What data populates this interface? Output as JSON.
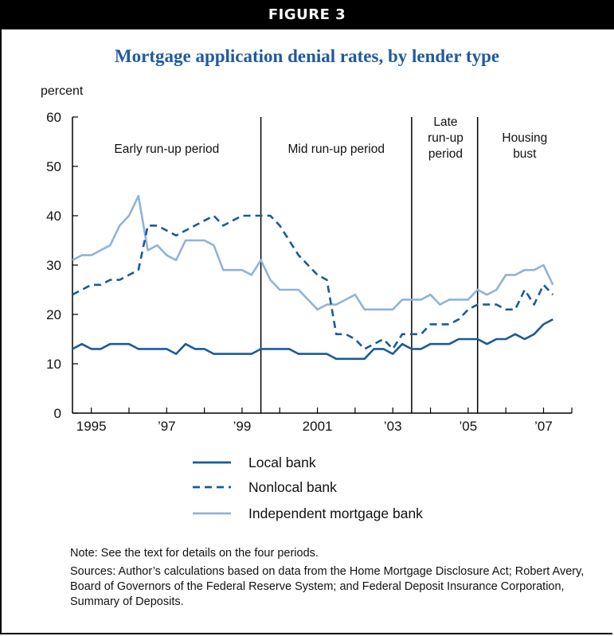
{
  "figure_label": "FIGURE 3",
  "chart_data": {
    "type": "line",
    "title": "Mortgage application denial rates, by lender type",
    "ylabel": "percent",
    "xlabel": "",
    "ylim": [
      0,
      60
    ],
    "xlim": [
      1994.5,
      2007.75
    ],
    "yticks": [
      0,
      10,
      20,
      30,
      40,
      50,
      60
    ],
    "xtick_labels": [
      {
        "x": 1995,
        "label": "1995"
      },
      {
        "x": 1997,
        "label": "’97"
      },
      {
        "x": 1999,
        "label": "’99"
      },
      {
        "x": 2001,
        "label": "2001"
      },
      {
        "x": 2003,
        "label": "’03"
      },
      {
        "x": 2005,
        "label": "’05"
      },
      {
        "x": 2007,
        "label": "’07"
      }
    ],
    "period_dividers": [
      1999.5,
      2003.5,
      2005.25
    ],
    "period_labels": [
      {
        "x": 1997.0,
        "lines": [
          "Early run-up period"
        ]
      },
      {
        "x": 2001.5,
        "lines": [
          "Mid run-up period"
        ]
      },
      {
        "x": 2004.4,
        "lines": [
          "Late",
          "run-up",
          "period"
        ]
      },
      {
        "x": 2006.5,
        "lines": [
          "Housing",
          "bust"
        ]
      }
    ],
    "x": [
      1994.5,
      1994.75,
      1995,
      1995.25,
      1995.5,
      1995.75,
      1996,
      1996.25,
      1996.5,
      1996.75,
      1997,
      1997.25,
      1997.5,
      1997.75,
      1998,
      1998.25,
      1998.5,
      1998.75,
      1999,
      1999.25,
      1999.5,
      1999.75,
      2000,
      2000.25,
      2000.5,
      2000.75,
      2001,
      2001.25,
      2001.5,
      2001.75,
      2002,
      2002.25,
      2002.5,
      2002.75,
      2003,
      2003.25,
      2003.5,
      2003.75,
      2004,
      2004.25,
      2004.5,
      2004.75,
      2005,
      2005.25,
      2005.5,
      2005.75,
      2006,
      2006.25,
      2006.5,
      2006.75,
      2007,
      2007.25,
      2007.5
    ],
    "series": [
      {
        "name": "Local bank",
        "style": "solid",
        "color": "#1a5a9a",
        "values": [
          13,
          14,
          13,
          13,
          14,
          14,
          14,
          13,
          13,
          13,
          13,
          12,
          14,
          13,
          13,
          12,
          12,
          12,
          12,
          12,
          13,
          13,
          13,
          13,
          12,
          12,
          12,
          12,
          11,
          11,
          11,
          11,
          13,
          13,
          12,
          14,
          13,
          13,
          14,
          14,
          14,
          15,
          15,
          15,
          14,
          15,
          15,
          16,
          15,
          16,
          18,
          19,
          null
        ]
      },
      {
        "name": "Nonlocal bank",
        "style": "dashed",
        "color": "#1a5a9a",
        "values": [
          24,
          25,
          26,
          26,
          27,
          27,
          28,
          29,
          38,
          38,
          37,
          36,
          37,
          38,
          39,
          40,
          38,
          39,
          40,
          40,
          40,
          40,
          38,
          35,
          32,
          30,
          28,
          27,
          16,
          16,
          15,
          13,
          14,
          15,
          13,
          16,
          16,
          16,
          18,
          18,
          18,
          19,
          21,
          22,
          22,
          22,
          21,
          21,
          25,
          22,
          26,
          24,
          null
        ]
      },
      {
        "name": "Independent mortgage bank",
        "style": "solid",
        "color": "#8fb3d9",
        "values": [
          31,
          32,
          32,
          33,
          34,
          38,
          40,
          44,
          33,
          34,
          32,
          31,
          35,
          35,
          35,
          34,
          29,
          29,
          29,
          28,
          31,
          27,
          25,
          25,
          25,
          23,
          21,
          22,
          22,
          23,
          24,
          21,
          21,
          21,
          21,
          23,
          23,
          23,
          24,
          22,
          23,
          23,
          23,
          25,
          24,
          25,
          28,
          28,
          29,
          29,
          30,
          26,
          null
        ]
      }
    ],
    "legend_placement": "bottom-center"
  },
  "notes": {
    "note": "Note: See the text for details on the four periods.",
    "sources": "Sources: Author’s calculations based on data from the Home Mortgage Disclosure Act; Robert Avery, Board of Governors of the Federal Reserve System; and Federal Deposit Insurance Corporation, Summary of Deposits."
  }
}
